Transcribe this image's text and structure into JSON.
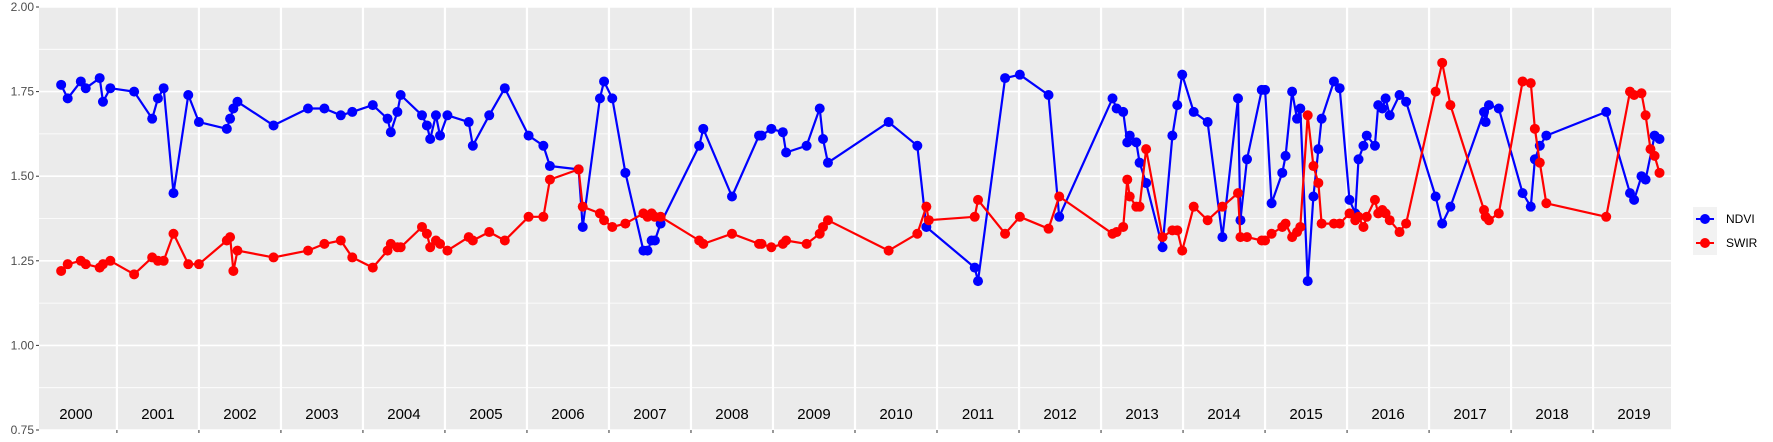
{
  "chart_data": {
    "type": "line",
    "title": "",
    "xlabel": "",
    "ylabel": "",
    "xlim": [
      2000.05,
      2019.95
    ],
    "ylim": [
      0.75,
      2.0
    ],
    "y_ticks": [
      "0.75",
      "1.00",
      "1.25",
      "1.50",
      "1.75",
      "2.00"
    ],
    "year_labels": [
      "2000",
      "2001",
      "2002",
      "2003",
      "2004",
      "2005",
      "2006",
      "2007",
      "2008",
      "2009",
      "2010",
      "2011",
      "2012",
      "2013",
      "2014",
      "2015",
      "2016",
      "2017",
      "2018",
      "2019"
    ],
    "grid": true,
    "legend_position": "right",
    "series": [
      {
        "name": "NDVI",
        "color": "#0000FF",
        "x": [
          2000.32,
          2000.4,
          2000.56,
          2000.62,
          2000.79,
          2000.83,
          2000.92,
          2001.21,
          2001.43,
          2001.5,
          2001.57,
          2001.69,
          2001.87,
          2002.0,
          2002.34,
          2002.38,
          2002.42,
          2002.47,
          2002.91,
          2003.33,
          2003.53,
          2003.73,
          2003.87,
          2004.12,
          2004.3,
          2004.34,
          2004.42,
          2004.46,
          2004.72,
          2004.78,
          2004.82,
          2004.89,
          2004.94,
          2005.03,
          2005.29,
          2005.34,
          2005.54,
          2005.73,
          2006.02,
          2006.2,
          2006.28,
          2006.63,
          2006.68,
          2006.89,
          2006.94,
          2007.04,
          2007.2,
          2007.42,
          2007.47,
          2007.52,
          2007.56,
          2007.63,
          2008.1,
          2008.15,
          2008.5,
          2008.83,
          2008.86,
          2008.98,
          2009.12,
          2009.16,
          2009.41,
          2009.57,
          2009.61,
          2009.67,
          2010.41,
          2010.76,
          2010.87,
          2011.46,
          2011.5,
          2011.83,
          2012.01,
          2012.36,
          2012.49,
          2013.14,
          2013.19,
          2013.27,
          2013.32,
          2013.35,
          2013.43,
          2013.47,
          2013.55,
          2013.75,
          2013.87,
          2013.93,
          2013.99,
          2014.13,
          2014.3,
          2014.48,
          2014.67,
          2014.7,
          2014.78,
          2014.96,
          2015.0,
          2015.08,
          2015.21,
          2015.25,
          2015.33,
          2015.39,
          2015.43,
          2015.52,
          2015.59,
          2015.65,
          2015.69,
          2015.84,
          2015.91,
          2016.03,
          2016.1,
          2016.14,
          2016.2,
          2016.24,
          2016.34,
          2016.38,
          2016.43,
          2016.47,
          2016.52,
          2016.64,
          2016.72,
          2017.08,
          2017.16,
          2017.26,
          2017.67,
          2017.69,
          2017.73,
          2017.85,
          2018.14,
          2018.24,
          2018.29,
          2018.35,
          2018.43,
          2019.16,
          2019.45,
          2019.5,
          2019.59,
          2019.64,
          2019.75,
          2019.81
        ],
        "y": [
          1.77,
          1.73,
          1.78,
          1.76,
          1.79,
          1.72,
          1.76,
          1.75,
          1.67,
          1.73,
          1.76,
          1.45,
          1.74,
          1.66,
          1.64,
          1.67,
          1.7,
          1.72,
          1.65,
          1.7,
          1.7,
          1.68,
          1.69,
          1.71,
          1.67,
          1.63,
          1.69,
          1.74,
          1.68,
          1.65,
          1.61,
          1.68,
          1.62,
          1.68,
          1.66,
          1.59,
          1.68,
          1.76,
          1.62,
          1.59,
          1.53,
          1.52,
          1.35,
          1.73,
          1.78,
          1.73,
          1.51,
          1.28,
          1.28,
          1.31,
          1.31,
          1.36,
          1.59,
          1.64,
          1.44,
          1.62,
          1.62,
          1.64,
          1.63,
          1.57,
          1.59,
          1.7,
          1.61,
          1.54,
          1.66,
          1.59,
          1.35,
          1.23,
          1.19,
          1.79,
          1.8,
          1.74,
          1.38,
          1.73,
          1.7,
          1.69,
          1.6,
          1.62,
          1.6,
          1.54,
          1.48,
          1.29,
          1.62,
          1.71,
          1.8,
          1.69,
          1.66,
          1.32,
          1.73,
          1.37,
          1.55,
          1.755,
          1.755,
          1.42,
          1.51,
          1.56,
          1.75,
          1.67,
          1.7,
          1.19,
          1.44,
          1.58,
          1.67,
          1.78,
          1.76,
          1.43,
          1.39,
          1.55,
          1.59,
          1.62,
          1.59,
          1.71,
          1.7,
          1.73,
          1.68,
          1.74,
          1.72,
          1.44,
          1.36,
          1.41,
          1.69,
          1.66,
          1.71,
          1.7,
          1.45,
          1.41,
          1.55,
          1.59,
          1.62,
          1.69,
          1.45,
          1.43,
          1.5,
          1.49,
          1.62,
          1.61
        ]
      },
      {
        "name": "SWIR",
        "color": "#FF0000",
        "x": [
          2000.32,
          2000.4,
          2000.56,
          2000.62,
          2000.79,
          2000.83,
          2000.92,
          2001.21,
          2001.43,
          2001.5,
          2001.57,
          2001.69,
          2001.87,
          2002.0,
          2002.34,
          2002.38,
          2002.42,
          2002.47,
          2002.91,
          2003.33,
          2003.53,
          2003.73,
          2003.87,
          2004.12,
          2004.3,
          2004.34,
          2004.42,
          2004.46,
          2004.72,
          2004.78,
          2004.82,
          2004.89,
          2004.94,
          2005.03,
          2005.29,
          2005.34,
          2005.54,
          2005.73,
          2006.02,
          2006.2,
          2006.28,
          2006.63,
          2006.68,
          2006.89,
          2006.94,
          2007.04,
          2007.2,
          2007.42,
          2007.47,
          2007.52,
          2007.56,
          2007.63,
          2008.1,
          2008.15,
          2008.5,
          2008.83,
          2008.86,
          2008.98,
          2009.12,
          2009.16,
          2009.41,
          2009.57,
          2009.61,
          2009.67,
          2010.41,
          2010.76,
          2010.87,
          2010.9,
          2011.46,
          2011.5,
          2011.83,
          2012.01,
          2012.36,
          2012.49,
          2013.14,
          2013.19,
          2013.27,
          2013.32,
          2013.35,
          2013.43,
          2013.47,
          2013.55,
          2013.75,
          2013.87,
          2013.93,
          2013.99,
          2014.13,
          2014.3,
          2014.48,
          2014.67,
          2014.7,
          2014.78,
          2014.96,
          2015.0,
          2015.08,
          2015.21,
          2015.25,
          2015.33,
          2015.39,
          2015.43,
          2015.52,
          2015.59,
          2015.65,
          2015.69,
          2015.84,
          2015.91,
          2016.03,
          2016.1,
          2016.14,
          2016.2,
          2016.24,
          2016.34,
          2016.38,
          2016.43,
          2016.47,
          2016.52,
          2016.64,
          2016.72,
          2017.08,
          2017.16,
          2017.26,
          2017.67,
          2017.69,
          2017.73,
          2017.85,
          2018.14,
          2018.24,
          2018.29,
          2018.35,
          2018.43,
          2019.16,
          2019.45,
          2019.5,
          2019.59,
          2019.64,
          2019.7,
          2019.75,
          2019.81
        ],
        "y": [
          1.22,
          1.24,
          1.25,
          1.24,
          1.23,
          1.24,
          1.25,
          1.21,
          1.26,
          1.25,
          1.25,
          1.33,
          1.24,
          1.24,
          1.31,
          1.32,
          1.22,
          1.28,
          1.26,
          1.28,
          1.3,
          1.31,
          1.26,
          1.23,
          1.28,
          1.3,
          1.29,
          1.29,
          1.35,
          1.33,
          1.29,
          1.31,
          1.3,
          1.28,
          1.32,
          1.31,
          1.335,
          1.31,
          1.38,
          1.38,
          1.49,
          1.52,
          1.41,
          1.39,
          1.37,
          1.35,
          1.36,
          1.39,
          1.38,
          1.39,
          1.38,
          1.38,
          1.31,
          1.3,
          1.33,
          1.3,
          1.3,
          1.29,
          1.3,
          1.31,
          1.3,
          1.33,
          1.35,
          1.37,
          1.28,
          1.33,
          1.41,
          1.37,
          1.38,
          1.43,
          1.33,
          1.38,
          1.345,
          1.44,
          1.33,
          1.335,
          1.35,
          1.49,
          1.44,
          1.41,
          1.41,
          1.58,
          1.32,
          1.34,
          1.34,
          1.28,
          1.41,
          1.37,
          1.41,
          1.45,
          1.32,
          1.32,
          1.31,
          1.31,
          1.33,
          1.35,
          1.36,
          1.32,
          1.335,
          1.35,
          1.68,
          1.53,
          1.48,
          1.36,
          1.36,
          1.36,
          1.39,
          1.37,
          1.38,
          1.35,
          1.38,
          1.43,
          1.39,
          1.4,
          1.39,
          1.37,
          1.335,
          1.36,
          1.75,
          1.835,
          1.71,
          1.4,
          1.38,
          1.37,
          1.39,
          1.78,
          1.775,
          1.64,
          1.54,
          1.42,
          1.38,
          1.75,
          1.74,
          1.745,
          1.68,
          1.58,
          1.56,
          1.51
        ]
      }
    ]
  },
  "legend": {
    "items": [
      {
        "label": "NDVI",
        "color": "#0000FF"
      },
      {
        "label": "SWIR",
        "color": "#FF0000"
      }
    ]
  },
  "colors": {
    "panel_background": "#EBEBEB",
    "grid": "#FFFFFF",
    "axis_text": "#4D4D4D"
  }
}
